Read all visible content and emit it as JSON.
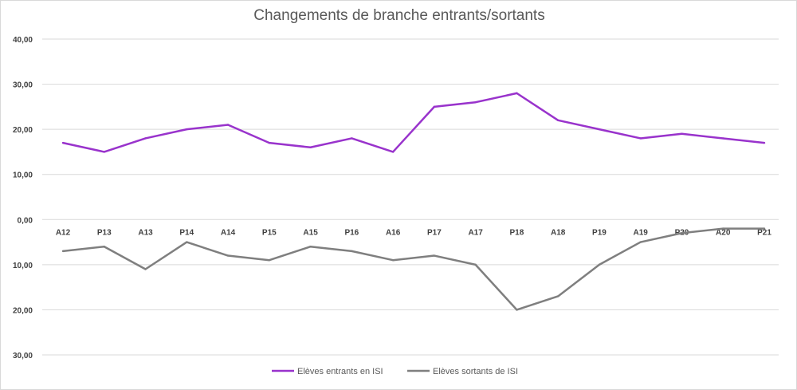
{
  "chart_data": {
    "type": "line",
    "title": "Changements de branche entrants/sortants",
    "xlabel": "",
    "ylabel": "",
    "categories": [
      "A12",
      "P13",
      "A13",
      "P14",
      "A14",
      "P15",
      "A15",
      "P16",
      "A16",
      "P17",
      "A17",
      "P18",
      "A18",
      "P19",
      "A19",
      "P20",
      "A20",
      "P21"
    ],
    "ylim": [
      -30,
      40
    ],
    "yticks": [
      40,
      30,
      20,
      10,
      0,
      -10,
      -20,
      -30
    ],
    "ytick_labels": [
      "40,00",
      "30,00",
      "20,00",
      "10,00",
      "0,00",
      "10,00",
      "20,00",
      "30,00"
    ],
    "grid": "horizontal",
    "legend_position": "bottom",
    "series": [
      {
        "name": "Elèves entrants en ISI",
        "color": "#9933cc",
        "values": [
          17,
          15,
          18,
          20,
          21,
          17,
          16,
          18,
          15,
          25,
          26,
          28,
          22,
          20,
          18,
          19,
          18,
          17
        ]
      },
      {
        "name": "Elèves sortants de ISI",
        "color": "#7f7f7f",
        "values": [
          -7,
          -6,
          -11,
          -5,
          -8,
          -9,
          -6,
          -7,
          -9,
          -8,
          -10,
          -20,
          -17,
          -10,
          -5,
          -3,
          -2,
          -2
        ]
      }
    ]
  }
}
